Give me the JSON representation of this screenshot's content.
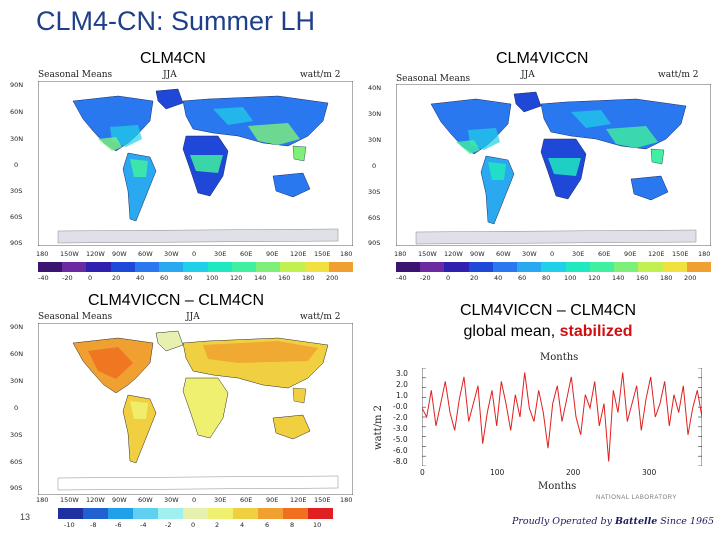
{
  "slide_title": "CLM4-CN: Summer LH",
  "panels": {
    "top_left": "CLM4CN",
    "top_right": "CLM4VICCN",
    "bottom_left": "CLM4VICCN – CLM4CN",
    "bottom_right_line1": "CLM4VICCN – CLM4CN",
    "bottom_right_line2_prefix": "global mean, ",
    "bottom_right_line2_emph": "stabilized"
  },
  "map": {
    "header_left": "Seasonal Means",
    "header_mid": "JJA",
    "header_right": "watt/m 2",
    "lat_labels_a": [
      "90N",
      "60N",
      "30N",
      "0",
      "30S",
      "60S",
      "90S"
    ],
    "lat_labels_b": [
      "40N",
      "30N",
      "30N",
      "0",
      "30S",
      "60S",
      "90S"
    ],
    "lon_labels": [
      "180",
      "150W",
      "120W",
      "90W",
      "60W",
      "30W",
      "0",
      "30E",
      "60E",
      "90E",
      "120E",
      "150E",
      "180"
    ],
    "abs_colorbar_labels": [
      "-40",
      "-20",
      "0",
      "20",
      "40",
      "60",
      "80",
      "100",
      "120",
      "140",
      "160",
      "180",
      "200"
    ],
    "abs_colors": [
      "#3a1470",
      "#6b2aa0",
      "#3020b0",
      "#1f48d8",
      "#2a78f0",
      "#2aa8f0",
      "#20d0e8",
      "#20e8c0",
      "#40f0a0",
      "#7ef07a",
      "#c2f050",
      "#f0e040",
      "#f0a030"
    ],
    "diff_colorbar_labels": [
      "-10",
      "-8",
      "-6",
      "-4",
      "-2",
      "0",
      "2",
      "4",
      "6",
      "8",
      "10"
    ],
    "diff_colors": [
      "#2030a0",
      "#2060d0",
      "#20a0e8",
      "#60d0f0",
      "#a0f0f0",
      "#e8f0b0",
      "#f0f070",
      "#f0d040",
      "#f0a030",
      "#f07020",
      "#e02020"
    ]
  },
  "timeseries": {
    "title": "Months",
    "xlabel": "Months",
    "ylabel": "watt/m 2",
    "xticks": [
      "0",
      "100",
      "200",
      "300"
    ],
    "yticks": [
      "3.0",
      "2.0",
      "1.0",
      "-0.0",
      "-2.0",
      "-3.0",
      "-5.0",
      "-6.0",
      "-8.0"
    ]
  },
  "chart_data": {
    "type": "line",
    "title": "Months",
    "xlabel": "Months",
    "ylabel": "watt/m 2",
    "xlim": [
      0,
      360
    ],
    "ylim": [
      -8.0,
      3.0
    ],
    "series": [
      {
        "x": [
          0,
          6,
          12,
          18,
          24,
          30,
          36,
          42,
          48,
          54,
          60,
          66,
          72,
          78,
          84,
          90,
          96,
          102,
          108,
          114,
          120,
          126,
          132,
          138,
          144,
          150,
          156,
          162,
          168,
          174,
          180,
          186,
          192,
          198,
          204,
          210,
          216,
          222,
          228,
          234,
          240,
          246,
          252,
          258,
          264,
          270,
          276,
          282,
          288,
          294,
          300,
          306,
          312,
          318,
          324,
          330,
          336,
          342,
          348,
          354,
          360
        ],
        "y": [
          -1.5,
          -2.5,
          0.5,
          -3.5,
          -1.0,
          1.5,
          -2.0,
          -4.0,
          -0.5,
          2.0,
          -3.0,
          -1.0,
          1.0,
          -5.5,
          -2.0,
          0.5,
          -3.5,
          1.5,
          -1.0,
          -4.0,
          0.0,
          -2.5,
          2.5,
          -1.5,
          -3.0,
          0.5,
          -2.0,
          -6.0,
          -1.0,
          1.0,
          -3.0,
          -0.5,
          2.0,
          -2.5,
          -4.5,
          0.0,
          -1.5,
          1.5,
          -3.5,
          -1.0,
          -7.5,
          0.5,
          -2.0,
          2.5,
          -3.0,
          -1.0,
          1.0,
          -4.0,
          -0.5,
          2.0,
          -2.5,
          -1.0,
          1.5,
          -3.5,
          0.0,
          -2.0,
          1.0,
          -4.5,
          -1.5,
          0.5,
          -2.5
        ]
      }
    ]
  },
  "page_number": "13",
  "footer": {
    "prefix": "Proudly Operated by ",
    "brand": "Battelle",
    "suffix": " Since 1965"
  },
  "lab_name": "NATIONAL LABORATORY"
}
